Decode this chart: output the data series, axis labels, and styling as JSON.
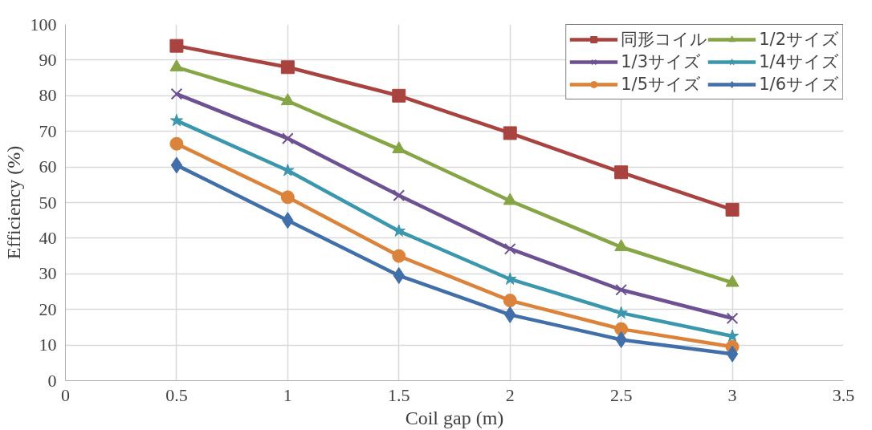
{
  "chart_data": {
    "type": "line",
    "xlabel": "Coil gap (m)",
    "ylabel": "Efficiency (%)",
    "x": [
      0.5,
      1,
      1.5,
      2,
      2.5,
      3
    ],
    "xlim": [
      0,
      3.5
    ],
    "xticks": [
      0,
      0.5,
      1,
      1.5,
      2,
      2.5,
      3,
      3.5
    ],
    "ylim": [
      0,
      100
    ],
    "yticks": [
      0,
      10,
      20,
      30,
      40,
      50,
      60,
      70,
      80,
      90,
      100
    ],
    "grid": true,
    "legend": "top right",
    "line_style": "solid",
    "series": [
      {
        "name": "同形コイル",
        "color": "#a9433f",
        "marker": "square",
        "values": [
          94,
          88,
          80,
          69.5,
          58.5,
          48
        ]
      },
      {
        "name": "1/2サイズ",
        "color": "#86a545",
        "marker": "triangle",
        "values": [
          88,
          78.5,
          65,
          50.5,
          37.5,
          27.5
        ]
      },
      {
        "name": "1/3サイズ",
        "color": "#6d5192",
        "marker": "cross",
        "values": [
          80.5,
          68,
          52,
          37,
          25.5,
          17.5
        ]
      },
      {
        "name": "1/4サイズ",
        "color": "#3b97ad",
        "marker": "star",
        "values": [
          73,
          59,
          42,
          28.5,
          19,
          12.5
        ]
      },
      {
        "name": "1/5サイズ",
        "color": "#db833a",
        "marker": "circle",
        "values": [
          66.5,
          51.5,
          35,
          22.5,
          14.5,
          9.5
        ]
      },
      {
        "name": "1/6サイズ",
        "color": "#416fa9",
        "marker": "diamond",
        "values": [
          60.5,
          45,
          29.5,
          18.5,
          11.5,
          7.5
        ]
      }
    ]
  }
}
